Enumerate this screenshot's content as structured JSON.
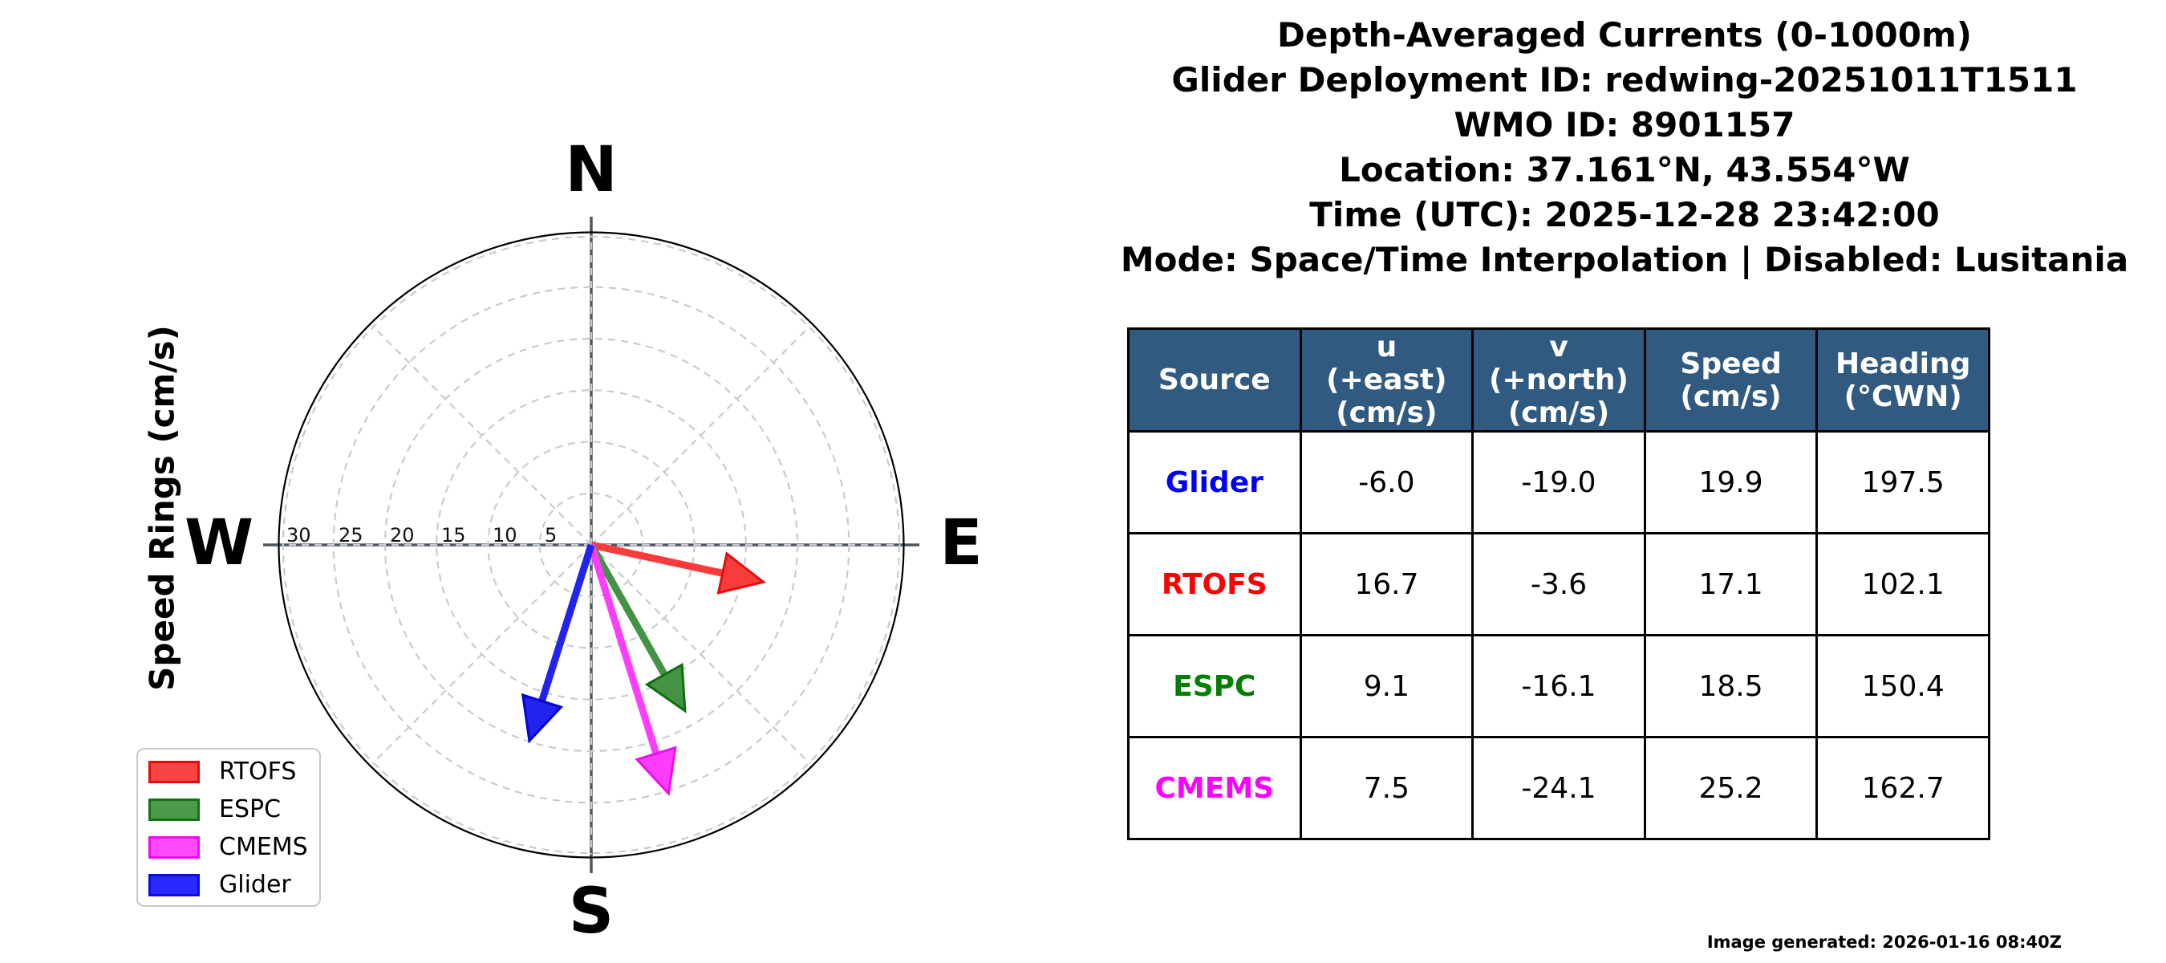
{
  "title_lines": [
    "Depth-Averaged Currents (0-1000m)",
    "Glider Deployment ID: redwing-20251011T1511",
    "WMO ID: 8901157",
    "Location: 37.161°N, 43.554°W",
    "Time (UTC): 2025-12-28 23:42:00",
    "Mode: Space/Time Interpolation | Disabled: Lusitania"
  ],
  "footer": "Image generated: 2026-01-16 08:40Z",
  "polar": {
    "ylabel": "Speed Rings (cm/s)",
    "compass": {
      "north": "N",
      "east": "E",
      "south": "S",
      "west": "W"
    },
    "ring_labels": [
      "30",
      "25",
      "20",
      "15",
      "10",
      "5"
    ],
    "grid_color": "#c9cbd3",
    "axis_color": "#4e565e"
  },
  "chart_data": {
    "type": "polar_vector",
    "units": "cm/s",
    "ring_radii": [
      5,
      10,
      15,
      20,
      25,
      30
    ],
    "rlim": [
      0,
      30
    ],
    "legend_position": "lower left",
    "series": [
      {
        "name": "RTOFS",
        "u": 16.7,
        "v": -3.6,
        "speed": 17.1,
        "heading_cwn": 102.1,
        "color": "#ff0000",
        "fill": "#f83b3b",
        "edge": "#e40e0e"
      },
      {
        "name": "ESPC",
        "u": 9.1,
        "v": -16.1,
        "speed": 18.5,
        "heading_cwn": 150.4,
        "color": "#008000",
        "fill": "#449344",
        "edge": "#106e10"
      },
      {
        "name": "CMEMS",
        "u": 7.5,
        "v": -24.1,
        "speed": 25.2,
        "heading_cwn": 162.7,
        "color": "#ff00ff",
        "fill": "#fc3efc",
        "edge": "#ec0cec"
      },
      {
        "name": "Glider",
        "u": -6.0,
        "v": -19.0,
        "speed": 19.9,
        "heading_cwn": 197.5,
        "color": "#0000ff",
        "fill": "#2323f0",
        "edge": "#0404d6"
      }
    ]
  },
  "legend": {
    "items": [
      {
        "label": "RTOFS",
        "fill": "#f94444",
        "edge": "#e30b0b"
      },
      {
        "label": "ESPC",
        "fill": "#4b9b4b",
        "edge": "#117311"
      },
      {
        "label": "CMEMS",
        "fill": "#fe4bfe",
        "edge": "#ef0bef"
      },
      {
        "label": "Glider",
        "fill": "#2929fe",
        "edge": "#0b0be3"
      }
    ]
  },
  "table": {
    "headers": [
      "Source",
      "u\n(+east)\n(cm/s)",
      "v\n(+north)\n(cm/s)",
      "Speed\n(cm/s)",
      "Heading\n(°CWN)"
    ],
    "header_bg": "#315a80",
    "rows": [
      {
        "source": "Glider",
        "color": "#0000ff",
        "u": "-6.0",
        "v": "-19.0",
        "speed": "19.9",
        "heading": "197.5"
      },
      {
        "source": "RTOFS",
        "color": "#ff0000",
        "u": "16.7",
        "v": "-3.6",
        "speed": "17.1",
        "heading": "102.1"
      },
      {
        "source": "ESPC",
        "color": "#008000",
        "u": "9.1",
        "v": "-16.1",
        "speed": "18.5",
        "heading": "150.4"
      },
      {
        "source": "CMEMS",
        "color": "#ff00ff",
        "u": "7.5",
        "v": "-24.1",
        "speed": "25.2",
        "heading": "162.7"
      }
    ]
  }
}
